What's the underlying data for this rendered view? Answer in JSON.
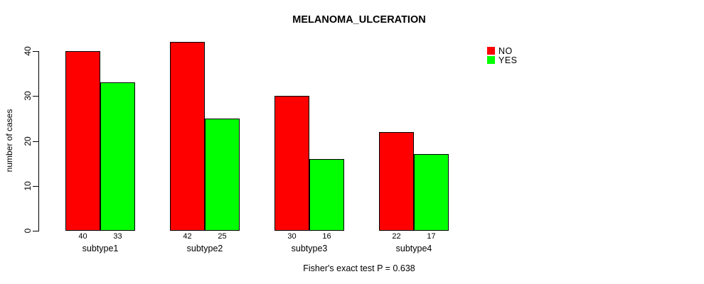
{
  "title": "MELANOMA_ULCERATION",
  "footer": "Fisher's exact test P = 0.638",
  "y_axis_label": "number of cases",
  "legend": {
    "items": [
      {
        "label": "NO",
        "color": "#ff0000"
      },
      {
        "label": "YES",
        "color": "#00ff00"
      }
    ]
  },
  "chart_data": {
    "type": "bar",
    "title": "MELANOMA_ULCERATION",
    "categories": [
      "subtype1",
      "subtype2",
      "subtype3",
      "subtype4"
    ],
    "series": [
      {
        "name": "NO",
        "color": "#ff0000",
        "values": [
          40,
          42,
          30,
          22
        ]
      },
      {
        "name": "YES",
        "color": "#00ff00",
        "values": [
          33,
          25,
          16,
          17
        ]
      }
    ],
    "xlabel": "",
    "ylabel": "number of cases",
    "ylim": [
      0,
      40
    ],
    "yticks": [
      0,
      10,
      20,
      30,
      40
    ],
    "bar_value_labels": true,
    "grid": false,
    "legend_position": "top-right",
    "annotation": "Fisher's exact test P = 0.638"
  }
}
